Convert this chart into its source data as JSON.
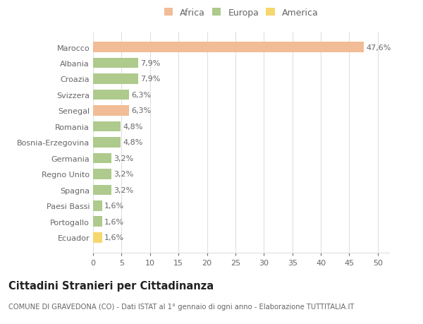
{
  "categories": [
    "Marocco",
    "Albania",
    "Croazia",
    "Svizzera",
    "Senegal",
    "Romania",
    "Bosnia-Erzegovina",
    "Germania",
    "Regno Unito",
    "Spagna",
    "Paesi Bassi",
    "Portogallo",
    "Ecuador"
  ],
  "values": [
    47.6,
    7.9,
    7.9,
    6.3,
    6.3,
    4.8,
    4.8,
    3.2,
    3.2,
    3.2,
    1.6,
    1.6,
    1.6
  ],
  "labels": [
    "47,6%",
    "7,9%",
    "7,9%",
    "6,3%",
    "6,3%",
    "4,8%",
    "4,8%",
    "3,2%",
    "3,2%",
    "3,2%",
    "1,6%",
    "1,6%",
    "1,6%"
  ],
  "colors": [
    "#F2BC96",
    "#AECA8C",
    "#AECA8C",
    "#AECA8C",
    "#F2BC96",
    "#AECA8C",
    "#AECA8C",
    "#AECA8C",
    "#AECA8C",
    "#AECA8C",
    "#AECA8C",
    "#AECA8C",
    "#F5D76E"
  ],
  "legend": [
    {
      "label": "Africa",
      "color": "#F2BC96"
    },
    {
      "label": "Europa",
      "color": "#AECA8C"
    },
    {
      "label": "America",
      "color": "#F5D76E"
    }
  ],
  "xlim": [
    0,
    52
  ],
  "xticks": [
    0,
    5,
    10,
    15,
    20,
    25,
    30,
    35,
    40,
    45,
    50
  ],
  "title": "Cittadini Stranieri per Cittadinanza",
  "subtitle": "COMUNE DI GRAVEDONA (CO) - Dati ISTAT al 1° gennaio di ogni anno - Elaborazione TUTTITALIA.IT",
  "background_color": "#ffffff",
  "grid_color": "#e0e0e0",
  "text_color": "#666666",
  "label_fontsize": 8,
  "tick_fontsize": 8,
  "title_fontsize": 10.5,
  "subtitle_fontsize": 7.2
}
